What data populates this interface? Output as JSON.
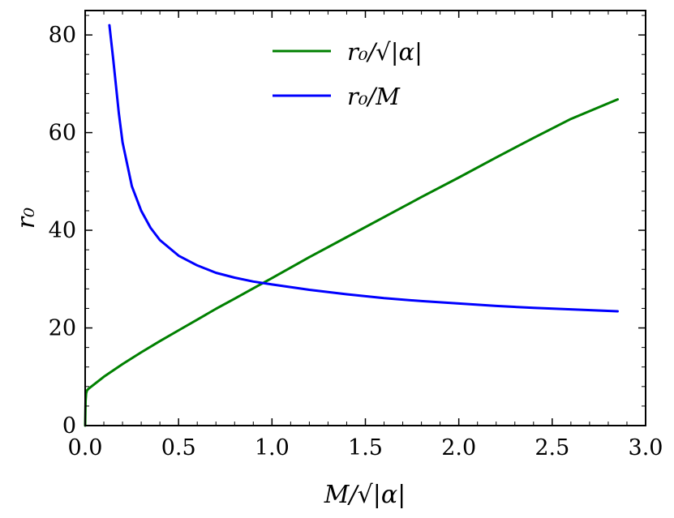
{
  "chart_data": {
    "type": "line",
    "title": "",
    "xlabel": "M/√|α|",
    "ylabel": "r₀",
    "xlim": [
      0.0,
      3.0
    ],
    "ylim": [
      0,
      85
    ],
    "x_ticks": [
      0.0,
      0.5,
      1.0,
      1.5,
      2.0,
      2.5,
      3.0
    ],
    "x_tick_labels": [
      "0.0",
      "0.5",
      "1.0",
      "1.5",
      "2.0",
      "2.5",
      "3.0"
    ],
    "y_ticks": [
      0,
      20,
      40,
      60,
      80
    ],
    "y_tick_labels": [
      "0",
      "20",
      "40",
      "60",
      "80"
    ],
    "grid": false,
    "legend_position": "top-center",
    "series": [
      {
        "name": "r₀/√|α|",
        "color": "#008000",
        "x": [
          0.0,
          0.002,
          0.005,
          0.01,
          0.02,
          0.05,
          0.1,
          0.2,
          0.3,
          0.4,
          0.5,
          0.6,
          0.7,
          0.8,
          0.9,
          1.0,
          1.2,
          1.4,
          1.6,
          1.8,
          2.0,
          2.2,
          2.4,
          2.6,
          2.85
        ],
        "y": [
          0.0,
          5.0,
          6.6,
          7.2,
          7.6,
          8.5,
          10.0,
          12.6,
          15.0,
          17.3,
          19.5,
          21.7,
          23.9,
          26.0,
          28.1,
          30.2,
          34.5,
          38.6,
          42.7,
          46.8,
          50.8,
          54.9,
          58.9,
          62.8,
          66.8
        ]
      },
      {
        "name": "r₀/M",
        "color": "#0000ff",
        "x": [
          0.13,
          0.15,
          0.18,
          0.2,
          0.25,
          0.3,
          0.35,
          0.4,
          0.5,
          0.6,
          0.7,
          0.8,
          0.9,
          1.0,
          1.2,
          1.4,
          1.6,
          1.8,
          2.0,
          2.2,
          2.4,
          2.6,
          2.85
        ],
        "y": [
          82.0,
          75.0,
          64.0,
          58.0,
          49.0,
          44.0,
          40.5,
          38.0,
          34.8,
          32.8,
          31.3,
          30.3,
          29.5,
          28.9,
          27.8,
          26.9,
          26.1,
          25.5,
          25.0,
          24.5,
          24.1,
          23.8,
          23.4
        ]
      }
    ]
  }
}
